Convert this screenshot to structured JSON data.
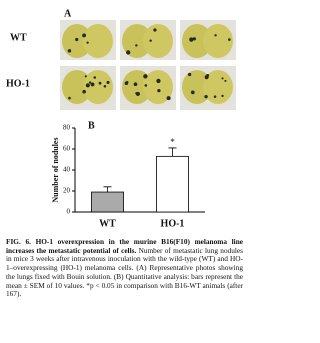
{
  "panels": {
    "a_label": "A",
    "b_label": "B",
    "row_labels": [
      "WT",
      "HO-1"
    ]
  },
  "chart_data": {
    "type": "bar",
    "ylabel": "Number of nodules",
    "categories": [
      "WT",
      "HO-1"
    ],
    "values": [
      19,
      53
    ],
    "errors": [
      5,
      8
    ],
    "colors": [
      "#aaaaaa",
      "#ffffff"
    ],
    "annotations": [
      null,
      "*"
    ],
    "ylim": [
      0,
      80
    ],
    "yticks": [
      0,
      20,
      40,
      60,
      80
    ],
    "grid": false
  },
  "caption": {
    "title": "FIG. 6. HO-1 overexpression in the murine B16(F10) melanoma line increases the metastatic potential of cells.",
    "text": "Number of metastatic lung nodules in mice 3 weeks after intravenous inoculation with the wild-type (WT) and HO-1–overexpressing (HO-1) melanoma cells. (A) Representative photos showing the lungs fixed with Bouin solution. (B) Quantitative analysis: bars represent the mean ± SEM of 10 values. *p < 0.05 in comparison with B16-WT animals (after 167)."
  }
}
